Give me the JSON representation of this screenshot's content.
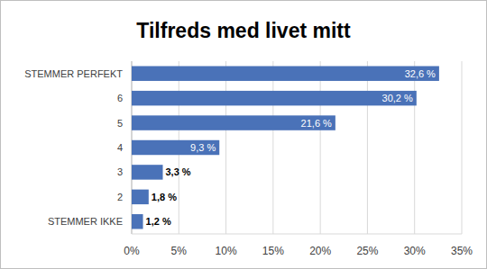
{
  "chart_data": {
    "type": "bar",
    "orientation": "horizontal",
    "title": "Tilfreds med livet mitt",
    "categories": [
      "STEMMER PERFEKT",
      "6",
      "5",
      "4",
      "3",
      "2",
      "STEMMER IKKE"
    ],
    "values": [
      32.6,
      30.2,
      21.6,
      9.3,
      3.3,
      1.8,
      1.2
    ],
    "value_labels": [
      "32,6 %",
      "30,2 %",
      "21,6 %",
      "9,3 %",
      "3,3 %",
      "1,8 %",
      "1,2 %"
    ],
    "color": "#4a72b8",
    "xlim": [
      0,
      35
    ],
    "xticks": [
      {
        "value": 0,
        "label": "0%"
      },
      {
        "value": 5,
        "label": "5%"
      },
      {
        "value": 10,
        "label": "10%"
      },
      {
        "value": 15,
        "label": "15%"
      },
      {
        "value": 20,
        "label": "20%"
      },
      {
        "value": 25,
        "label": "25%"
      },
      {
        "value": 30,
        "label": "30%"
      },
      {
        "value": 35,
        "label": "35%"
      }
    ],
    "grid": true,
    "data_labels": true
  }
}
